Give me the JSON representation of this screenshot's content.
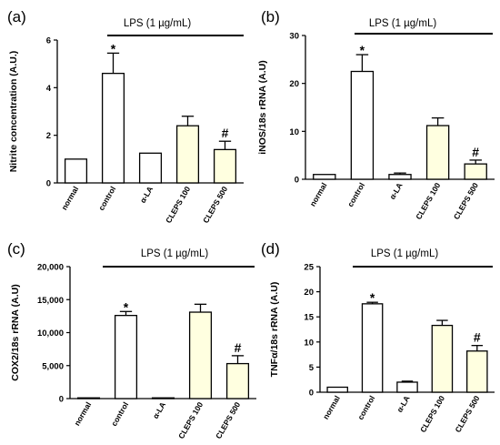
{
  "chart_data": [
    {
      "type": "bar",
      "panel_label": "(a)",
      "annotation": "LPS (1 µg/mL)",
      "ylabel": "Nitrite concentration (A.U.)",
      "ylim": [
        0,
        6
      ],
      "yticks": [
        "0",
        "2",
        "4",
        "6"
      ],
      "categories": [
        "normal",
        "control",
        "α-LA",
        "CLEPS 100",
        "CLEPS 500"
      ],
      "values": [
        1.0,
        4.6,
        1.25,
        2.4,
        1.4
      ],
      "errors": [
        0,
        0.85,
        0,
        0.4,
        0.35
      ],
      "fills": [
        "#ffffff",
        "#ffffff",
        "#ffffff",
        "#ffffe0",
        "#ffffe0"
      ],
      "significance": [
        "",
        "*",
        "",
        "",
        "#"
      ]
    },
    {
      "type": "bar",
      "panel_label": "(b)",
      "annotation": "LPS (1 µg/mL)",
      "ylabel": "iNOS/18s rRNA (A.U)",
      "ylim": [
        0,
        30
      ],
      "yticks": [
        "0",
        "10",
        "20",
        "30"
      ],
      "categories": [
        "normal",
        "control",
        "α-LA",
        "CLEPS 100",
        "CLEPS 500"
      ],
      "values": [
        1.0,
        22.5,
        1.0,
        11.2,
        3.2
      ],
      "errors": [
        0,
        3.5,
        0.3,
        1.6,
        0.8
      ],
      "fills": [
        "#ffffff",
        "#ffffff",
        "#ffffff",
        "#ffffe0",
        "#ffffe0"
      ],
      "significance": [
        "",
        "*",
        "",
        "",
        "#"
      ]
    },
    {
      "type": "bar",
      "panel_label": "(c)",
      "annotation": "LPS (1 µg/mL)",
      "ylabel": "COX2/18s rRNA (A.U)",
      "ylim": [
        0,
        20000
      ],
      "yticks": [
        "0",
        "5,000",
        "10,000",
        "15,000",
        "20,000"
      ],
      "categories": [
        "normal",
        "control",
        "α-LA",
        "CLEPS 100",
        "CLEPS 500"
      ],
      "values": [
        0,
        12600,
        100,
        13100,
        5300
      ],
      "errors": [
        0,
        600,
        0,
        1200,
        1200
      ],
      "fills": [
        "#ffffff",
        "#ffffff",
        "#ffffff",
        "#ffffe0",
        "#ffffe0"
      ],
      "significance": [
        "",
        "*",
        "",
        "",
        "#"
      ]
    },
    {
      "type": "bar",
      "panel_label": "(d)",
      "annotation": "LPS (1 µg/mL)",
      "ylabel": "TNFα/18s rRNA (A.U)",
      "ylim": [
        0,
        25
      ],
      "yticks": [
        "0",
        "5",
        "10",
        "15",
        "20",
        "25"
      ],
      "categories": [
        "normal",
        "control",
        "α-LA",
        "CLEPS 100",
        "CLEPS 500"
      ],
      "values": [
        1.0,
        17.6,
        2.0,
        13.3,
        8.2
      ],
      "errors": [
        0,
        0.3,
        0.2,
        1.0,
        1.1
      ],
      "fills": [
        "#ffffff",
        "#ffffff",
        "#ffffff",
        "#ffffe0",
        "#ffffe0"
      ],
      "significance": [
        "",
        "*",
        "",
        "",
        "#"
      ]
    }
  ]
}
